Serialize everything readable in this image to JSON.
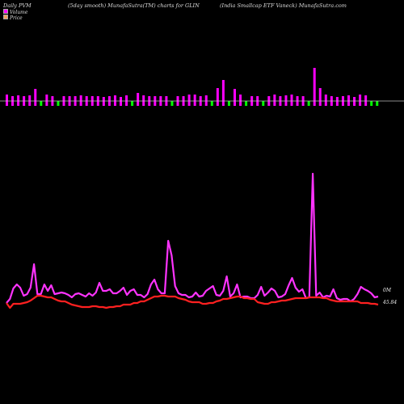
{
  "header": {
    "left": "Daily PVM",
    "center": "(5day smooth) MunafaSutra(TM) charts for GLIN",
    "right": "(India  Smallcap ETF Vaneck) MunafaSutra.com"
  },
  "legend": {
    "volume": "Volume",
    "price": "Price"
  },
  "colors": {
    "background": "#000000",
    "volume_up": "#ff00ff",
    "volume_down": "#00ff00",
    "volume_line": "#ff33ff",
    "price_line": "#ff2020"
  },
  "chart_data": {
    "type": "line",
    "description_free": true,
    "x": [
      1,
      2,
      3,
      4,
      5,
      6,
      7,
      8,
      9,
      10,
      11,
      12,
      13,
      14,
      15,
      16,
      17,
      18,
      19,
      20,
      21,
      22,
      23,
      24,
      25,
      26,
      27,
      28,
      29,
      30,
      31,
      32,
      33,
      34,
      35,
      36,
      37,
      38,
      39,
      40,
      41,
      42,
      43,
      44,
      45,
      46,
      47,
      48,
      49,
      50,
      51,
      52,
      53,
      54,
      55,
      56,
      57,
      58,
      59,
      60,
      61,
      62,
      63,
      64,
      65,
      66
    ],
    "volume_bars": [
      {
        "up": 8,
        "down": 6
      },
      {
        "up": 6,
        "down": 0
      },
      {
        "up": 7,
        "down": 0
      },
      {
        "up": 6,
        "down": 0
      },
      {
        "up": 7,
        "down": 0
      },
      {
        "up": 15,
        "down": 0
      },
      {
        "up": 0,
        "down": 0
      },
      {
        "up": 8,
        "down": 0
      },
      {
        "up": 6,
        "down": 0
      },
      {
        "up": 0,
        "down": 0
      },
      {
        "up": 6,
        "down": 0
      },
      {
        "up": 6,
        "down": 0
      },
      {
        "up": 6,
        "down": 0
      },
      {
        "up": 7,
        "down": 0
      },
      {
        "up": 6,
        "down": 0
      },
      {
        "up": 6,
        "down": 0
      },
      {
        "up": 6,
        "down": 0
      },
      {
        "up": 5,
        "down": 0
      },
      {
        "up": 6,
        "down": 0
      },
      {
        "up": 7,
        "down": 0
      },
      {
        "up": 5,
        "down": 0
      },
      {
        "up": 7,
        "down": 0
      },
      {
        "up": 0,
        "down": 0
      },
      {
        "up": 10,
        "down": 0
      },
      {
        "up": 7,
        "down": 0
      },
      {
        "up": 6,
        "down": 0
      },
      {
        "up": 6,
        "down": 0
      },
      {
        "up": 6,
        "down": 0
      },
      {
        "up": 6,
        "down": 0
      },
      {
        "up": 0,
        "down": 0
      },
      {
        "up": 6,
        "down": 0
      },
      {
        "up": 6,
        "down": 0
      },
      {
        "up": 8,
        "down": 0
      },
      {
        "up": 8,
        "down": 0
      },
      {
        "up": 6,
        "down": 0
      },
      {
        "up": 7,
        "down": 0
      },
      {
        "up": 0,
        "down": 0
      },
      {
        "up": 16,
        "down": 0
      },
      {
        "up": 26,
        "down": 0
      },
      {
        "up": 0,
        "down": 0
      },
      {
        "up": 15,
        "down": 0
      },
      {
        "up": 8,
        "down": 0
      },
      {
        "up": 0,
        "down": 0
      },
      {
        "up": 6,
        "down": 0
      },
      {
        "up": 6,
        "down": 0
      },
      {
        "up": 0,
        "down": 0
      },
      {
        "up": 6,
        "down": 0
      },
      {
        "up": 8,
        "down": 0
      },
      {
        "up": 6,
        "down": 0
      },
      {
        "up": 7,
        "down": 0
      },
      {
        "up": 8,
        "down": 0
      },
      {
        "up": 6,
        "down": 0
      },
      {
        "up": 6,
        "down": 0
      },
      {
        "up": 0,
        "down": 0
      },
      {
        "up": 41,
        "down": 0
      },
      {
        "up": 16,
        "down": 0
      },
      {
        "up": 8,
        "down": 0
      },
      {
        "up": 6,
        "down": 0
      },
      {
        "up": 5,
        "down": 0
      },
      {
        "up": 6,
        "down": 0
      },
      {
        "up": 7,
        "down": 0
      },
      {
        "up": 5,
        "down": 0
      },
      {
        "up": 8,
        "down": 0
      },
      {
        "up": 7,
        "down": 0
      },
      {
        "up": 0,
        "down": 0
      },
      {
        "up": 0,
        "down": 0
      }
    ],
    "volume_line": [
      374,
      370,
      358,
      352,
      356,
      365,
      364,
      356,
      327,
      365,
      364,
      352,
      360,
      353,
      365,
      363,
      362,
      362,
      365,
      368,
      364,
      363,
      365,
      367,
      363,
      366,
      362,
      349,
      359,
      360,
      358,
      363,
      363,
      360,
      356,
      365,
      359,
      358,
      365,
      365,
      368,
      364,
      353,
      346,
      358,
      363,
      363,
      298,
      315,
      363,
      365,
      365,
      365,
      368,
      367,
      362,
      367,
      366,
      360,
      357,
      354,
      365,
      366,
      360,
      342,
      368,
      363,
      350,
      369,
      367,
      367,
      369,
      369,
      365,
      354,
      366,
      362,
      357,
      360,
      368,
      367,
      364,
      352,
      344,
      356,
      361,
      358,
      369,
      368,
      362,
      366,
      365,
      370,
      366,
      367,
      358,
      369,
      371,
      370,
      370,
      373,
      370,
      364,
      356,
      358,
      360,
      363,
      368,
      367
    ],
    "price_line": [
      375,
      381,
      376,
      376,
      375,
      374,
      373,
      371,
      368,
      365,
      366,
      367,
      368,
      368,
      370,
      372,
      373,
      373,
      375,
      376,
      377,
      379,
      380,
      380,
      380,
      379,
      379,
      380,
      380,
      381,
      380,
      380,
      379,
      379,
      377,
      377,
      377,
      375,
      375,
      373,
      373,
      371,
      369,
      367,
      367,
      366,
      366,
      367,
      367,
      367,
      369,
      370,
      371,
      373,
      374,
      374,
      374,
      376,
      376,
      375,
      375,
      373,
      372,
      370,
      370,
      369,
      368,
      367,
      367,
      369,
      369,
      370,
      370,
      374,
      375,
      376,
      376,
      374,
      374,
      373,
      372,
      372,
      371,
      370,
      369,
      369,
      369,
      369,
      368,
      368,
      368,
      368,
      369,
      369,
      371,
      372,
      373,
      373,
      373,
      373,
      373,
      373,
      373,
      375,
      375,
      375,
      376,
      377,
      378
    ],
    "value_labels": {
      "volume_last": "0M",
      "price_last": "45.84"
    }
  }
}
